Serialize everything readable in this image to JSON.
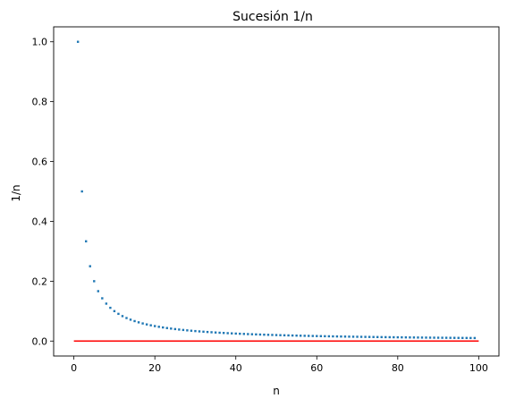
{
  "chart_data": {
    "type": "scatter",
    "title": "Sucesión 1/n",
    "xlabel": "n",
    "ylabel": "1/n",
    "xlim": [
      -5,
      105
    ],
    "ylim": [
      -0.05,
      1.05
    ],
    "x_ticks": [
      0,
      20,
      40,
      60,
      80,
      100
    ],
    "x_tick_labels": [
      "0",
      "20",
      "40",
      "60",
      "80",
      "100"
    ],
    "y_ticks": [
      0.0,
      0.2,
      0.4,
      0.6,
      0.8,
      1.0
    ],
    "y_tick_labels": [
      "0.0",
      "0.2",
      "0.4",
      "0.6",
      "0.8",
      "1.0"
    ],
    "grid": false,
    "series": [
      {
        "kind": "points",
        "n_start": 1,
        "n_end": 99,
        "formula": "1/n",
        "color": "#1f77b4"
      },
      {
        "kind": "line",
        "x": [
          0,
          100
        ],
        "y": [
          0,
          0
        ],
        "color": "#ff0000"
      }
    ]
  }
}
